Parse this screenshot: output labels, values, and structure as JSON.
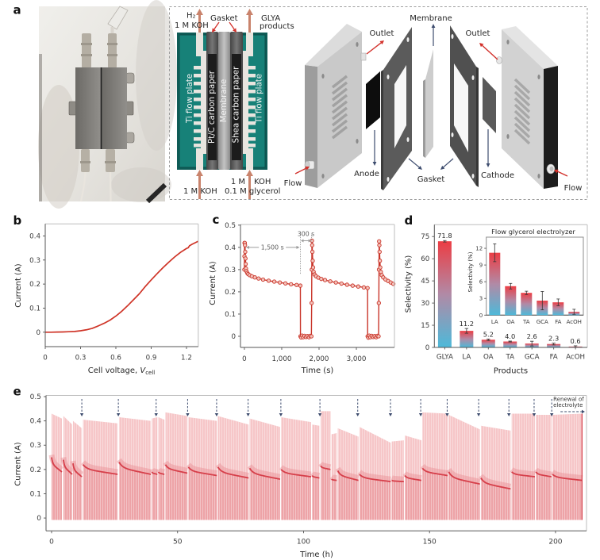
{
  "panel_labels": {
    "a": "a",
    "b": "b",
    "c": "c",
    "d": "d",
    "e": "e"
  },
  "panel_a": {
    "cross_section": {
      "outlet_left": {
        "species": "H₂",
        "electrolyte": "1 M KOH"
      },
      "gasket": "Gasket",
      "outlet_right": {
        "line1": "GLYA",
        "line2": "products"
      },
      "left_plate": "Ti flow plate",
      "anode_layer": "Pt/C carbon paper",
      "membrane": "Membrane",
      "cathode_layer": "Shea carbon paper",
      "right_plate": "Ti flow plate",
      "inlet_left": "1 M KOH",
      "inlet_right": {
        "line1_a": "1 M",
        "line1_b": "KOH",
        "line2": "0.1 M glycerol"
      }
    },
    "exploded_view": {
      "membrane": "Membrane",
      "outlet_left": "Outlet",
      "outlet_right": "Outlet",
      "anode": "Anode",
      "gasket": "Gasket",
      "cathode": "Cathode",
      "flow_left": "Flow",
      "flow_right": "Flow"
    }
  },
  "colors": {
    "polarization_line": "#cf3427",
    "chrono_marker_stroke": "#c9352a",
    "chrono_marker_fill": "#f4c3bb",
    "bar_top": "#ec3d44",
    "bar_mid": "#b18aa6",
    "bar_bottom": "#4db9d9",
    "stability_envelope": "#f6c6c8",
    "stability_lower": "#eda3a7",
    "stability_halo": "#e98b92",
    "stability_median": "#d63f4a",
    "renewal_arrow": "#3d4c6e",
    "inlet_arrow": "#c9836c",
    "pointer_red": "#d2302a",
    "label_arrow": "#3d4c6e",
    "annotation_gray": "#9b9b9b"
  },
  "chart_data": [
    {
      "type": "line",
      "xlabel": {
        "text": "Cell voltage, ",
        "var": "V",
        "sub": "cell"
      },
      "ylabel": "Current (A)",
      "xlim": [
        0,
        1.3
      ],
      "ylim": [
        -0.06,
        0.45
      ],
      "xticks": [
        0,
        0.3,
        0.6,
        0.9,
        1.2
      ],
      "xtick_labels": [
        "0",
        "0.3",
        "0.6",
        "0.9",
        "1.2"
      ],
      "yticks": [
        0,
        0.1,
        0.2,
        0.3,
        0.4
      ],
      "ytick_labels": [
        "0",
        "0.1",
        "0.2",
        "0.3",
        "0.4"
      ],
      "grid": false,
      "series": [
        {
          "points": [
            [
              0,
              0
            ],
            [
              0.05,
              0
            ],
            [
              0.1,
              0.0005
            ],
            [
              0.15,
              0.001
            ],
            [
              0.2,
              0.002
            ],
            [
              0.25,
              0.003
            ],
            [
              0.3,
              0.006
            ],
            [
              0.35,
              0.01
            ],
            [
              0.4,
              0.016
            ],
            [
              0.45,
              0.026
            ],
            [
              0.5,
              0.037
            ],
            [
              0.55,
              0.05
            ],
            [
              0.6,
              0.067
            ],
            [
              0.65,
              0.087
            ],
            [
              0.7,
              0.11
            ],
            [
              0.75,
              0.135
            ],
            [
              0.8,
              0.16
            ],
            [
              0.85,
              0.19
            ],
            [
              0.9,
              0.217
            ],
            [
              0.95,
              0.243
            ],
            [
              1.0,
              0.268
            ],
            [
              1.05,
              0.291
            ],
            [
              1.1,
              0.313
            ],
            [
              1.15,
              0.332
            ],
            [
              1.2,
              0.348
            ],
            [
              1.215,
              0.351
            ],
            [
              1.225,
              0.359
            ],
            [
              1.25,
              0.366
            ],
            [
              1.3,
              0.378
            ]
          ]
        }
      ]
    },
    {
      "type": "line",
      "xlabel": "Time (s)",
      "ylabel": "Current (A)",
      "xlim": [
        -105,
        4020
      ],
      "ylim": [
        -0.05,
        0.503
      ],
      "xticks": [
        0,
        1000,
        2000,
        3000
      ],
      "xtick_labels": [
        "0",
        "1,000",
        "2,000",
        "3,000"
      ],
      "yticks": [
        0,
        0.1,
        0.2,
        0.3,
        0.4,
        0.5
      ],
      "ytick_labels": [
        "0",
        "0.1",
        "0.2",
        "0.3",
        "0.4",
        "0.5"
      ],
      "grid": false,
      "annotations": [
        {
          "text": "1,500 s",
          "from": 0,
          "to": 1500,
          "y": 0.4
        },
        {
          "text": "300 s",
          "from": 1500,
          "to": 1800,
          "y": 0.43
        }
      ],
      "series": [
        {
          "points": [
            [
              0,
              0.3
            ],
            [
              2,
              0.36
            ],
            [
              4,
              0.42
            ],
            [
              10,
              0.42
            ],
            [
              16,
              0.41
            ],
            [
              22,
              0.38
            ],
            [
              28,
              0.35
            ],
            [
              34,
              0.325
            ],
            [
              42,
              0.305
            ],
            [
              55,
              0.293
            ],
            [
              75,
              0.285
            ],
            [
              100,
              0.28
            ],
            [
              140,
              0.275
            ],
            [
              200,
              0.27
            ],
            [
              280,
              0.265
            ],
            [
              380,
              0.26
            ],
            [
              500,
              0.255
            ],
            [
              650,
              0.25
            ],
            [
              800,
              0.246
            ],
            [
              950,
              0.242
            ],
            [
              1100,
              0.238
            ],
            [
              1250,
              0.234
            ],
            [
              1400,
              0.231
            ],
            [
              1500,
              0.228
            ],
            [
              1502,
              0.0
            ],
            [
              1520,
              -0.005
            ],
            [
              1545,
              0.003
            ],
            [
              1575,
              -0.004
            ],
            [
              1610,
              0.002
            ],
            [
              1650,
              -0.003
            ],
            [
              1690,
              0.001
            ],
            [
              1730,
              -0.004
            ],
            [
              1765,
              0.002
            ],
            [
              1795,
              0.0
            ],
            [
              1802,
              0.15
            ],
            [
              1806,
              0.3
            ],
            [
              1810,
              0.43
            ],
            [
              1816,
              0.41
            ],
            [
              1822,
              0.38
            ],
            [
              1830,
              0.34
            ],
            [
              1840,
              0.31
            ],
            [
              1855,
              0.29
            ],
            [
              1880,
              0.278
            ],
            [
              1920,
              0.27
            ],
            [
              1980,
              0.264
            ],
            [
              2060,
              0.258
            ],
            [
              2160,
              0.253
            ],
            [
              2300,
              0.247
            ],
            [
              2450,
              0.242
            ],
            [
              2600,
              0.237
            ],
            [
              2750,
              0.232
            ],
            [
              2900,
              0.228
            ],
            [
              3050,
              0.224
            ],
            [
              3200,
              0.22
            ],
            [
              3300,
              0.217
            ],
            [
              3302,
              0.0
            ],
            [
              3320,
              -0.006
            ],
            [
              3345,
              0.003
            ],
            [
              3375,
              -0.004
            ],
            [
              3410,
              0.002
            ],
            [
              3450,
              -0.003
            ],
            [
              3490,
              0.001
            ],
            [
              3530,
              -0.004
            ],
            [
              3565,
              0.002
            ],
            [
              3595,
              0.0
            ],
            [
              3602,
              0.15
            ],
            [
              3606,
              0.3
            ],
            [
              3610,
              0.427
            ],
            [
              3616,
              0.41
            ],
            [
              3622,
              0.38
            ],
            [
              3630,
              0.34
            ],
            [
              3640,
              0.31
            ],
            [
              3655,
              0.29
            ],
            [
              3680,
              0.275
            ],
            [
              3720,
              0.265
            ],
            [
              3780,
              0.256
            ],
            [
              3850,
              0.249
            ],
            [
              3920,
              0.242
            ],
            [
              3990,
              0.236
            ]
          ]
        }
      ]
    },
    {
      "type": "bar",
      "xlabel": "Products",
      "ylabel": "Selectivity (%)",
      "ylim": [
        0,
        83
      ],
      "categories": [
        "GLYA",
        "LA",
        "OA",
        "TA",
        "GCA",
        "FA",
        "AcOH"
      ],
      "values": [
        71.8,
        11.2,
        5.2,
        4.0,
        2.6,
        2.3,
        0.6
      ],
      "value_labels": [
        "71.8",
        "11.2",
        "5.2",
        "4.0",
        "2.6",
        "2.3",
        "0.6"
      ],
      "errors": [
        0.5,
        1.6,
        0.5,
        0.3,
        1.6,
        0.6,
        0.5
      ],
      "yticks": [
        0,
        15,
        30,
        45,
        60,
        75
      ],
      "ytick_labels": [
        "0",
        "15",
        "30",
        "45",
        "60",
        "75"
      ],
      "grid": false,
      "inset": {
        "type": "bar",
        "title": "Flow glycerol electrolyzer",
        "ylabel": "Selectivity (%)",
        "ylim": [
          0,
          14
        ],
        "categories": [
          "LA",
          "OA",
          "TA",
          "GCA",
          "FA",
          "AcOH"
        ],
        "values": [
          11.2,
          5.2,
          4.0,
          2.6,
          2.3,
          0.6
        ],
        "errors": [
          1.6,
          0.5,
          0.3,
          1.65,
          0.6,
          0.45
        ],
        "yticks": [
          0,
          3,
          6,
          9,
          12
        ],
        "ytick_labels": [
          "0",
          "3",
          "6",
          "9",
          "12"
        ]
      }
    },
    {
      "type": "area",
      "xlabel": "Time (h)",
      "ylabel": "Current (A)",
      "xlim": [
        -2.2,
        212.3
      ],
      "ylim": [
        -0.053,
        0.505
      ],
      "xticks": [
        0,
        50,
        100,
        150,
        200
      ],
      "xtick_labels": [
        "0",
        "50",
        "100",
        "150",
        "200"
      ],
      "yticks": [
        0,
        0.1,
        0.2,
        0.3,
        0.4,
        0.5
      ],
      "ytick_labels": [
        "0",
        "0.1",
        "0.2",
        "0.3",
        "0.4",
        "0.5"
      ],
      "grid": false,
      "baseline": -0.008,
      "segments": [
        {
          "t": [
            0,
            4.1
          ],
          "max": [
            0.43,
            0.41
          ],
          "median": [
            0.25,
            0.19
          ]
        },
        {
          "t": [
            4.7,
            8.2
          ],
          "max": [
            0.42,
            0.385
          ],
          "median": [
            0.24,
            0.18
          ]
        },
        {
          "t": [
            8.5,
            12.0
          ],
          "max": [
            0.4,
            0.37
          ],
          "median": [
            0.225,
            0.17
          ]
        },
        {
          "t": [
            12.5,
            26.2
          ],
          "max": [
            0.405,
            0.39
          ],
          "median": [
            0.22,
            0.18
          ]
        },
        {
          "t": [
            26.8,
            39.4
          ],
          "max": [
            0.415,
            0.4
          ],
          "median": [
            0.23,
            0.18
          ]
        },
        {
          "t": [
            39.8,
            42.0
          ],
          "max": [
            0.41,
            0.415
          ],
          "median": [
            0.19,
            0.18
          ]
        },
        {
          "t": [
            42.4,
            44.8
          ],
          "max": [
            0.415,
            0.405
          ],
          "median": [
            0.19,
            0.18
          ]
        },
        {
          "t": [
            45.2,
            53.9
          ],
          "max": [
            0.435,
            0.42
          ],
          "median": [
            0.22,
            0.185
          ]
        },
        {
          "t": [
            54.3,
            65.6
          ],
          "max": [
            0.415,
            0.4
          ],
          "median": [
            0.21,
            0.175
          ]
        },
        {
          "t": [
            66.0,
            78.2
          ],
          "max": [
            0.42,
            0.385
          ],
          "median": [
            0.21,
            0.165
          ]
        },
        {
          "t": [
            78.6,
            90.7
          ],
          "max": [
            0.41,
            0.375
          ],
          "median": [
            0.205,
            0.16
          ]
        },
        {
          "t": [
            91.1,
            103.0
          ],
          "max": [
            0.415,
            0.395
          ],
          "median": [
            0.2,
            0.17
          ]
        },
        {
          "t": [
            103.4,
            106.3
          ],
          "max": [
            0.385,
            0.38
          ],
          "median": [
            0.175,
            0.165
          ]
        },
        {
          "t": [
            106.8,
            110.7
          ],
          "max": [
            0.44,
            0.44
          ],
          "median": [
            0.215,
            0.2
          ]
        },
        {
          "t": [
            111.1,
            113.2
          ],
          "max": [
            0.345,
            0.35
          ],
          "median": [
            0.16,
            0.155
          ]
        },
        {
          "t": [
            113.6,
            121.8
          ],
          "max": [
            0.37,
            0.335
          ],
          "median": [
            0.195,
            0.155
          ]
        },
        {
          "t": [
            122.2,
            134.6
          ],
          "max": [
            0.375,
            0.31
          ],
          "median": [
            0.18,
            0.15
          ]
        },
        {
          "t": [
            135.0,
            139.8
          ],
          "max": [
            0.315,
            0.32
          ],
          "median": [
            0.155,
            0.15
          ]
        },
        {
          "t": [
            140.2,
            146.8
          ],
          "max": [
            0.34,
            0.32
          ],
          "median": [
            0.175,
            0.155
          ]
        },
        {
          "t": [
            147.2,
            157.2
          ],
          "max": [
            0.435,
            0.43
          ],
          "median": [
            0.205,
            0.175
          ]
        },
        {
          "t": [
            157.6,
            170.0
          ],
          "max": [
            0.425,
            0.365
          ],
          "median": [
            0.19,
            0.14
          ]
        },
        {
          "t": [
            170.4,
            182.2
          ],
          "max": [
            0.38,
            0.36
          ],
          "median": [
            0.165,
            0.12
          ]
        },
        {
          "t": [
            182.6,
            191.8
          ],
          "max": [
            0.43,
            0.43
          ],
          "median": [
            0.19,
            0.17
          ]
        },
        {
          "t": [
            192.2,
            198.4
          ],
          "max": [
            0.425,
            0.425
          ],
          "median": [
            0.19,
            0.17
          ]
        },
        {
          "t": [
            198.8,
            210.7
          ],
          "max": [
            0.425,
            0.43
          ],
          "median": [
            0.18,
            0.155
          ]
        }
      ],
      "renewal_times": [
        12,
        26.5,
        41.5,
        54,
        65.5,
        78,
        91,
        106.5,
        121.5,
        134.5,
        146.5,
        157,
        169.5,
        181.5,
        191.5,
        198.5
      ],
      "annotation": {
        "line1": "Renewal of",
        "line2": "electrolyte"
      }
    }
  ]
}
